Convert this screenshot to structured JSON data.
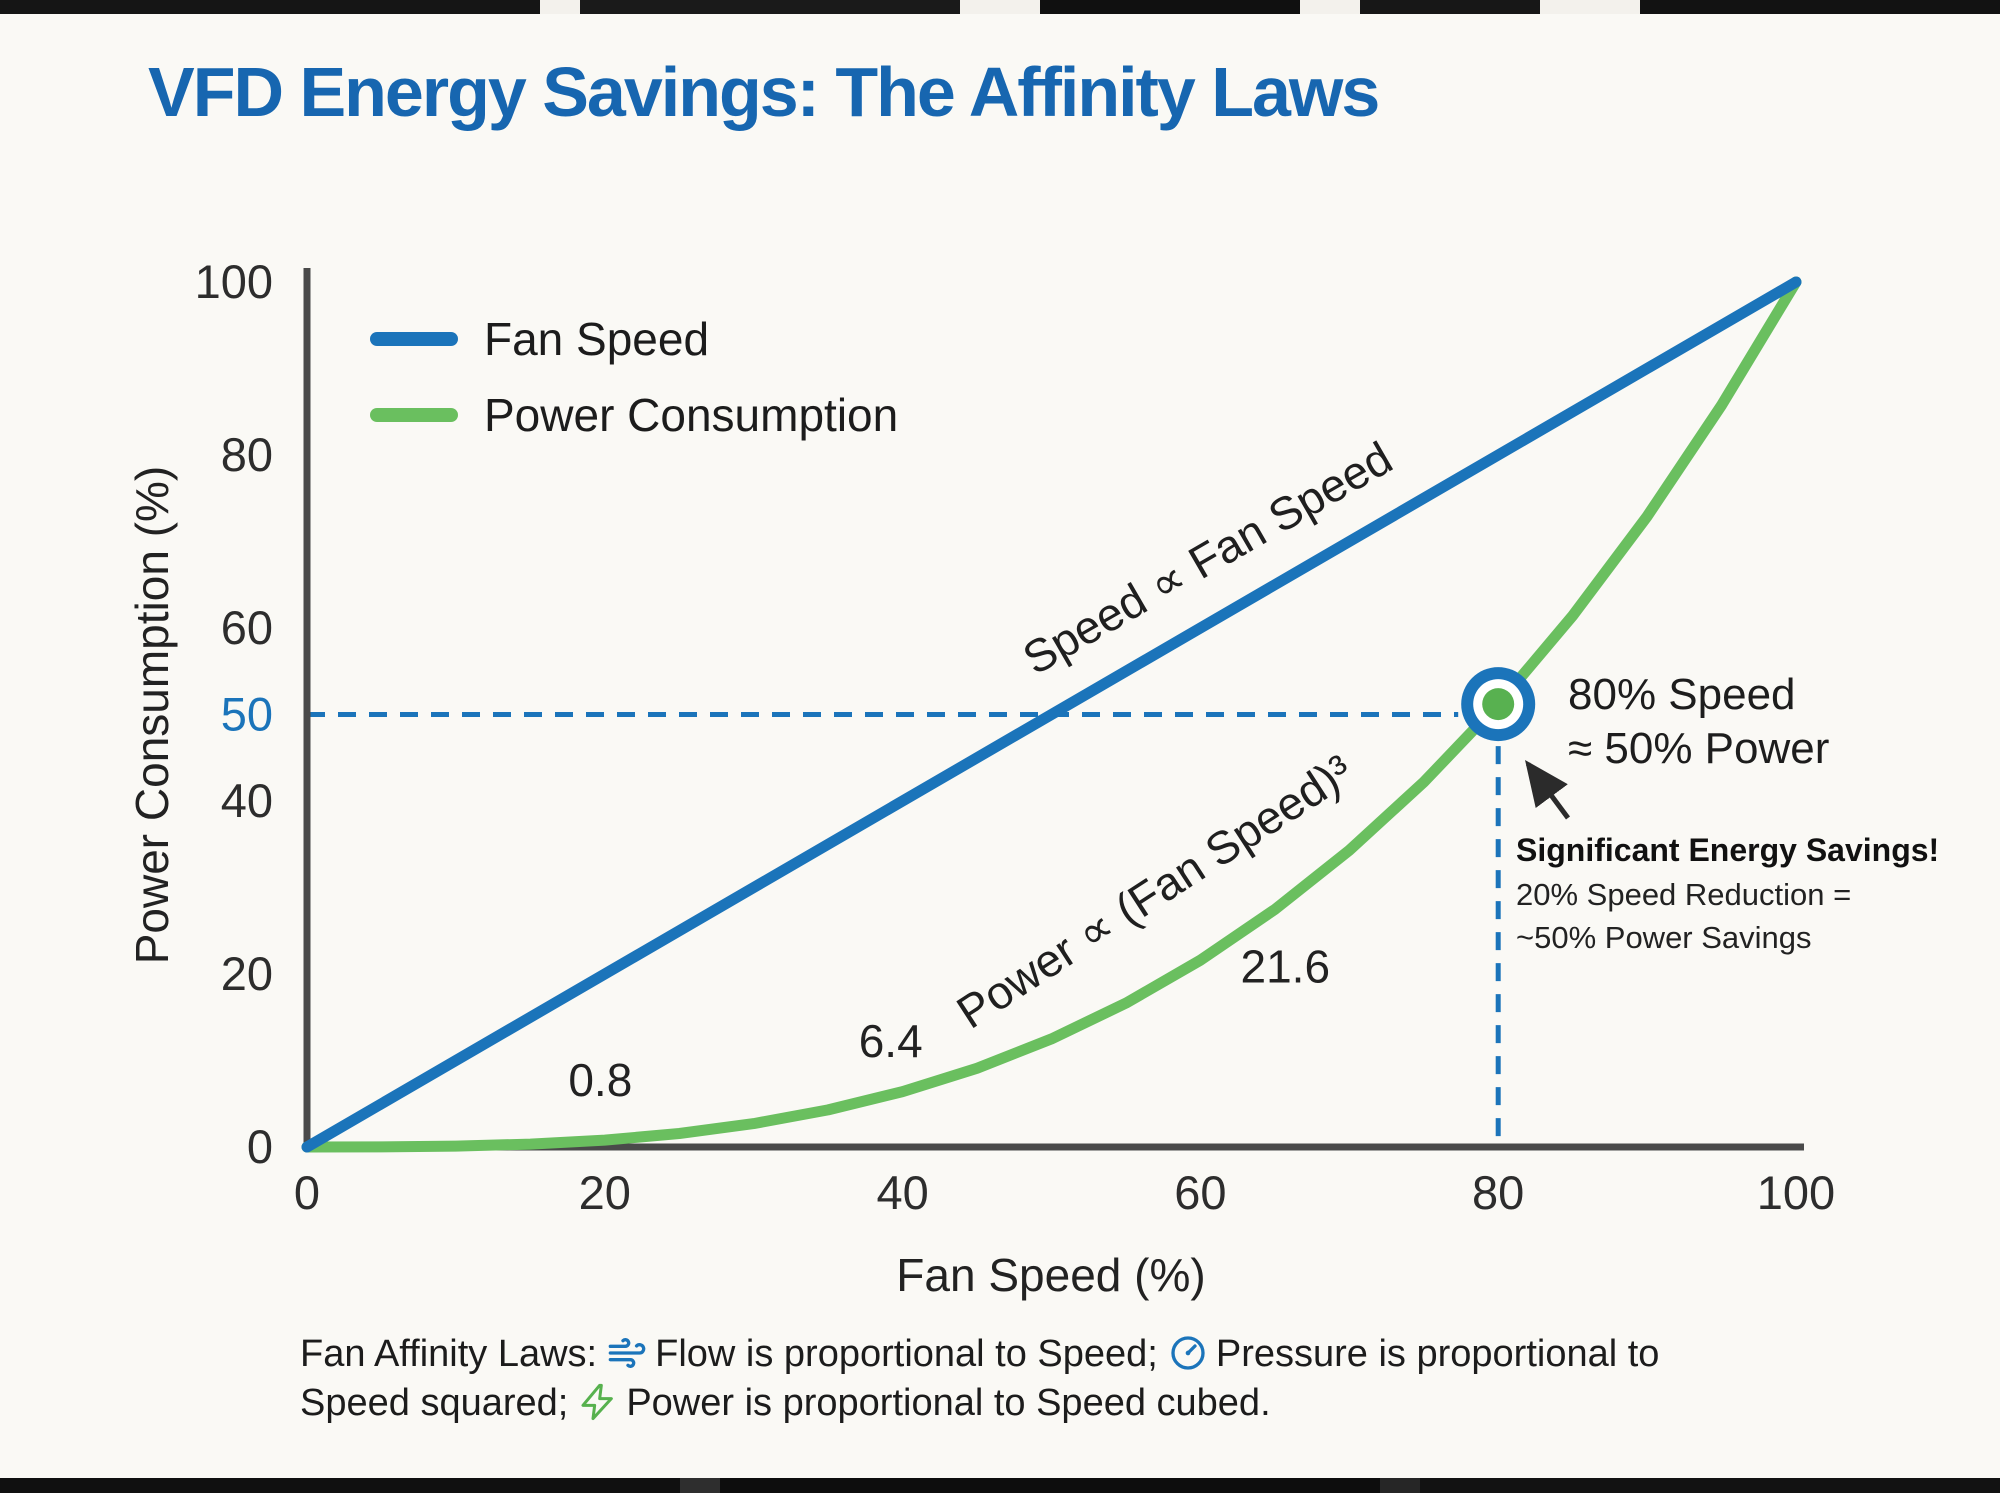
{
  "chart_data": {
    "type": "line",
    "title": "VFD Energy Savings: The Affinity Laws",
    "xlabel": "Fan Speed (%)",
    "ylabel": "Power Consumption (%)",
    "xlim": [
      0,
      100
    ],
    "ylim": [
      0,
      100
    ],
    "grid": false,
    "legend_position": "top-left",
    "x_ticks": [
      "0",
      "20",
      "40",
      "60",
      "80",
      "100"
    ],
    "y_ticks": [
      "0",
      "20",
      "40",
      "60",
      "80",
      "100"
    ],
    "highlight_y_tick": {
      "label": "50",
      "value": 50,
      "color": "#1b74ba"
    },
    "series": [
      {
        "name": "Fan Speed",
        "color": "#1b74ba",
        "relation": "Speed proportional to Fan Speed (linear)",
        "x": [
          0,
          100
        ],
        "values": [
          0,
          100
        ]
      },
      {
        "name": "Power Consumption",
        "color": "#6abf5f",
        "relation": "Power proportional to (Fan Speed) cubed",
        "x": [
          0,
          5,
          10,
          15,
          20,
          25,
          30,
          35,
          40,
          45,
          50,
          55,
          60,
          65,
          70,
          75,
          80,
          85,
          90,
          95,
          100
        ],
        "values": [
          0,
          0.01,
          0.1,
          0.34,
          0.8,
          1.56,
          2.7,
          4.29,
          6.4,
          9.11,
          12.5,
          16.64,
          21.6,
          27.46,
          34.3,
          42.19,
          51.2,
          61.41,
          72.9,
          85.74,
          100
        ]
      }
    ],
    "curve_labels": [
      {
        "text": "Speed ∝ Fan Speed",
        "x": 61,
        "y": 66.5,
        "rotation": -30
      },
      {
        "text": "Power ∝ (Fan Speed)³",
        "x": 57.5,
        "y": 28,
        "rotation": -33
      }
    ],
    "point_labels": [
      {
        "text": "0.8",
        "x": 19.7,
        "y": 5.9
      },
      {
        "text": "6.4",
        "x": 39.2,
        "y": 10.4
      },
      {
        "text": "21.6",
        "x": 65.7,
        "y": 19.0
      }
    ],
    "highlight_point": {
      "x": 80,
      "y": 51.2,
      "ring_color": "#1b74ba",
      "dot_color": "#58b150"
    },
    "reference_lines": {
      "y": 50,
      "x": 80,
      "color": "#1b74ba",
      "style": "dashed"
    }
  },
  "annotations": {
    "point_label_line1": "80% Speed",
    "point_label_line2": "≈ 50% Power",
    "callout_title": "Significant Energy Savings!",
    "callout_line1": "20% Speed Reduction =",
    "callout_line2": "~50% Power Savings"
  },
  "footer": {
    "prefix": "Fan Affinity Laws:",
    "flow_text": "Flow is proportional to Speed;",
    "pressure_text": "Pressure is proportional to Speed squared;",
    "power_text": "Power is proportional to Speed cubed."
  },
  "colors": {
    "title_blue": "#1766b0",
    "accent_blue": "#1b74ba",
    "accent_green": "#6abf5f",
    "text": "#222222",
    "axis": "#4a4a4a",
    "background": "#faf9f5"
  }
}
